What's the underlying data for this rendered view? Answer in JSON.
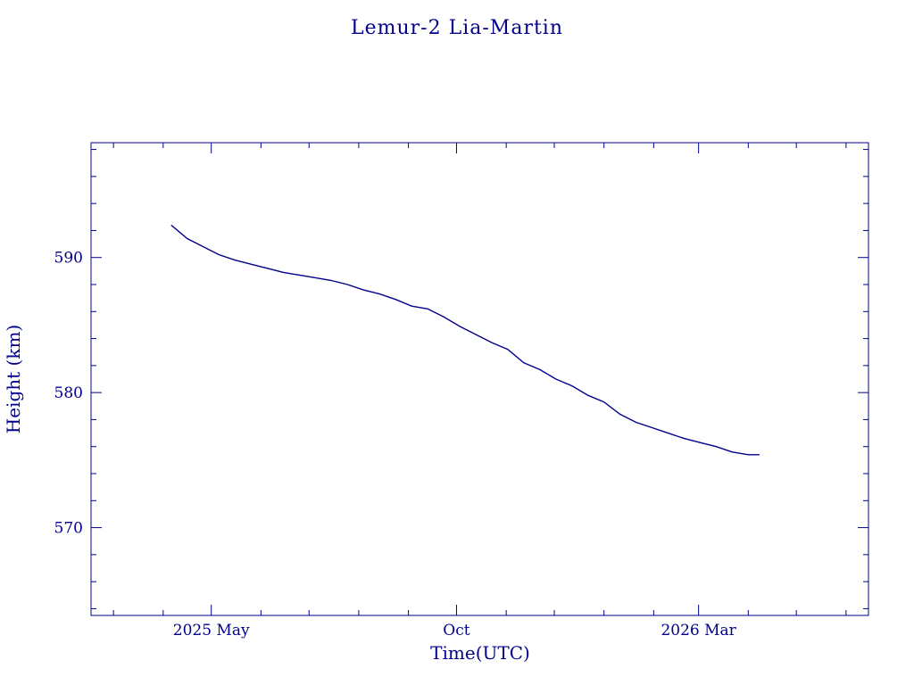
{
  "colors": {
    "ink": "#00008b",
    "background": "#ffffff"
  },
  "chart_data": {
    "type": "line",
    "title": "Lemur-2 Lia-Martin",
    "xlabel": "Time(UTC)",
    "ylabel": "Height (km)",
    "xlim": [
      "2025-02-15",
      "2026-06-15"
    ],
    "ylim": [
      563.5,
      598.5
    ],
    "x_tick_labels": [
      {
        "date": "2025-05-01",
        "label": "2025 May"
      },
      {
        "date": "2025-10-01",
        "label": "Oct"
      },
      {
        "date": "2026-03-01",
        "label": "2026 Mar"
      }
    ],
    "y_tick_labels": [
      570,
      580,
      590
    ],
    "grid": false,
    "legend": "none",
    "series": [
      {
        "x": [
          "2025-04-06",
          "2025-04-16",
          "2025-04-26",
          "2025-05-06",
          "2025-05-16",
          "2025-05-26",
          "2025-06-05",
          "2025-06-15",
          "2025-06-25",
          "2025-07-05",
          "2025-07-15",
          "2025-07-25",
          "2025-08-04",
          "2025-08-14",
          "2025-08-24",
          "2025-09-03",
          "2025-09-13",
          "2025-09-23",
          "2025-10-03",
          "2025-10-13",
          "2025-10-23",
          "2025-11-02",
          "2025-11-12",
          "2025-11-22",
          "2025-12-02",
          "2025-12-12",
          "2025-12-22",
          "2026-01-01",
          "2026-01-11",
          "2026-01-21",
          "2026-01-31",
          "2026-02-10",
          "2026-02-20",
          "2026-03-02",
          "2026-03-12",
          "2026-03-22",
          "2026-04-01",
          "2026-04-08"
        ],
        "y": [
          592.4,
          591.4,
          590.8,
          590.2,
          589.8,
          589.5,
          589.2,
          588.9,
          588.7,
          588.5,
          588.3,
          588.0,
          587.6,
          587.3,
          586.9,
          586.4,
          586.2,
          585.6,
          584.9,
          584.3,
          583.7,
          583.2,
          582.2,
          581.7,
          581.0,
          580.5,
          579.8,
          579.3,
          578.4,
          577.8,
          577.4,
          577.0,
          576.6,
          576.3,
          576.0,
          575.6,
          575.4,
          575.4
        ]
      }
    ]
  }
}
